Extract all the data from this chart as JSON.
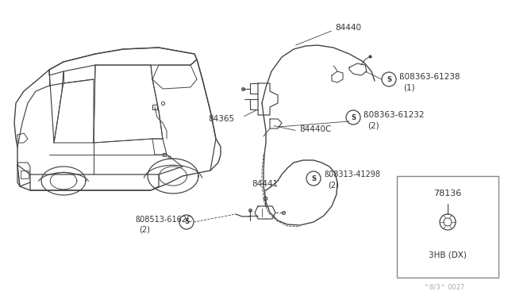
{
  "bg_color": "#ffffff",
  "line_color": "#444444",
  "text_color": "#333333",
  "fig_width": 6.4,
  "fig_height": 3.72,
  "watermark": "^8/3^ 0027",
  "inset_label": "3HB (DX)",
  "inset_part": "78136"
}
